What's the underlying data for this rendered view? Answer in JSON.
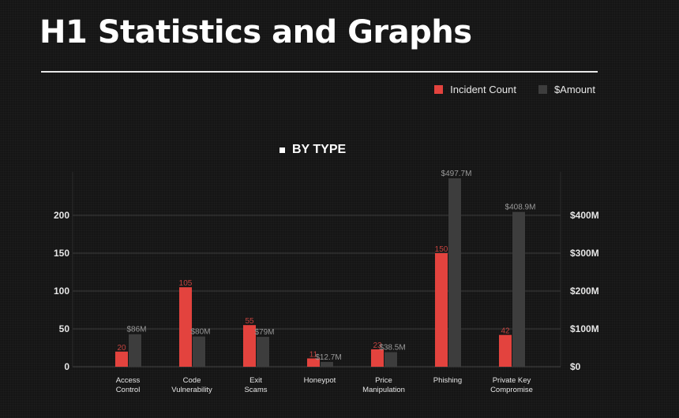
{
  "page_title": "H1 Statistics and Graphs",
  "colors": {
    "incident": "#e3433e",
    "amount": "#3d3d3d",
    "grid": "#3a3a3a",
    "label_incident": "#c4433f",
    "label_amount": "#9a9a9a"
  },
  "chart_data": {
    "type": "bar",
    "title": "BY TYPE",
    "categories": [
      "Access Control",
      "Code Vulnerability",
      "Exit Scams",
      "Honeypot",
      "Price Manipulation",
      "Phishing",
      "Private Key Compromise"
    ],
    "category_lines": [
      [
        "Access",
        "Control"
      ],
      [
        "Code",
        "Vulnerability"
      ],
      [
        "Exit",
        "Scams"
      ],
      [
        "Honeypot"
      ],
      [
        "Price",
        "Manipulation"
      ],
      [
        "Phishing"
      ],
      [
        "Private Key",
        "Compromise"
      ]
    ],
    "series": [
      {
        "name": "Incident Count",
        "axis": "left",
        "values": [
          20,
          105,
          55,
          11,
          23,
          150,
          42
        ],
        "labels": [
          "20",
          "105",
          "55",
          "11",
          "23",
          "150",
          "42"
        ]
      },
      {
        "name": "$Amount",
        "axis": "right",
        "values": [
          86,
          80,
          79,
          12.7,
          38.5,
          497.7,
          408.9
        ],
        "labels": [
          "$86M",
          "$80M",
          "$79M",
          "$12.7M",
          "$38.5M",
          "$497.7M",
          "$408.9M"
        ]
      }
    ],
    "y_left": {
      "ticks": [
        0,
        50,
        100,
        150,
        200
      ],
      "tick_labels": [
        "0",
        "50",
        "100",
        "150",
        "200"
      ]
    },
    "y_right": {
      "ticks": [
        0,
        100,
        200,
        300,
        400
      ],
      "tick_labels": [
        "$0",
        "$100M",
        "$200M",
        "$300M",
        "$400M"
      ]
    },
    "grid": true,
    "legend_position": "top-right"
  }
}
